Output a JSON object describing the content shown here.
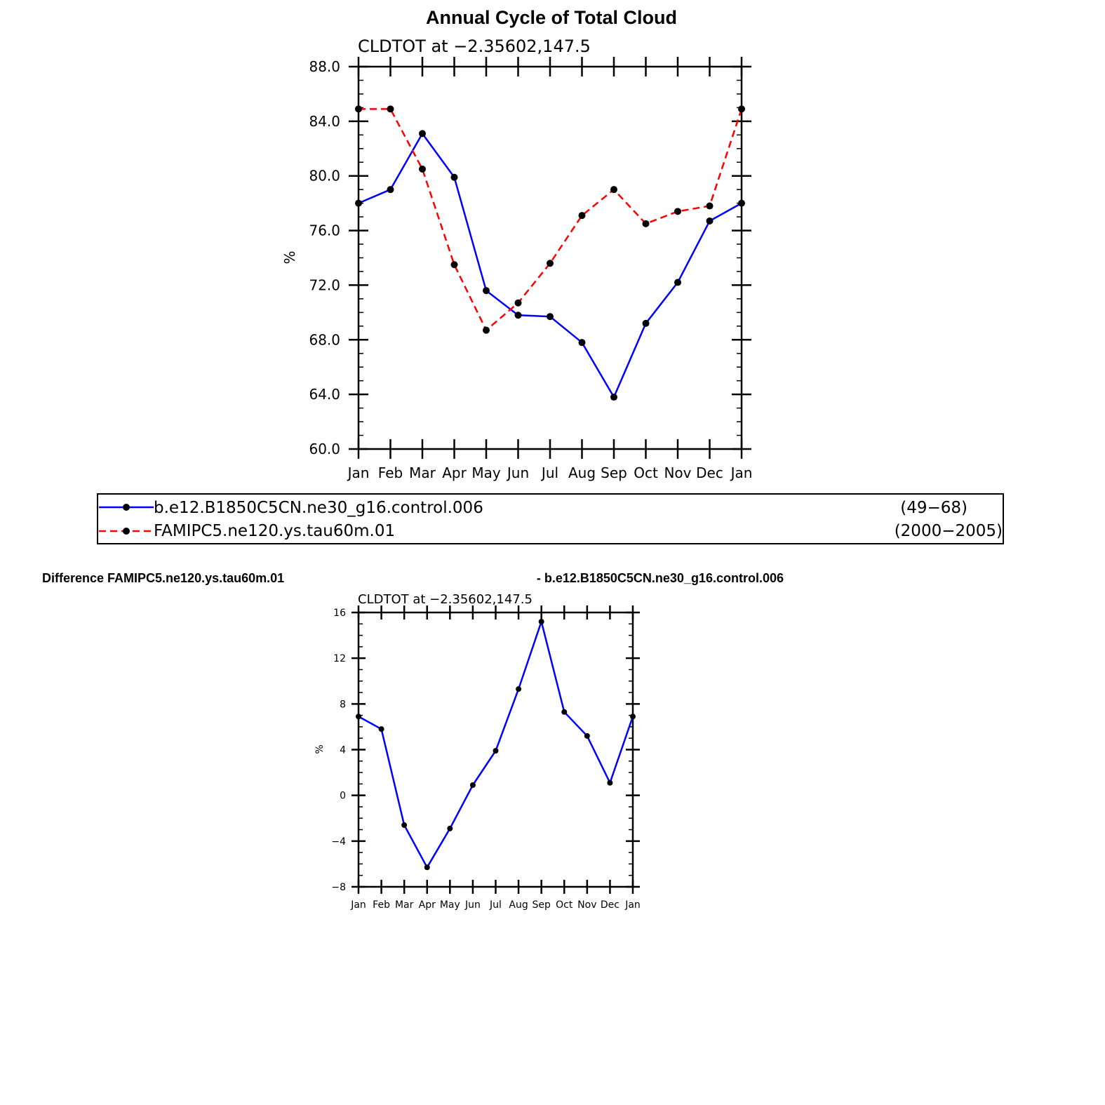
{
  "chart_data": [
    {
      "type": "line",
      "title": "Annual Cycle of Total Cloud",
      "subtitle": "CLDTOT at −2.35602,147.5",
      "xlabel": "",
      "ylabel": "%",
      "categories": [
        "Jan",
        "Feb",
        "Mar",
        "Apr",
        "May",
        "Jun",
        "Jul",
        "Aug",
        "Sep",
        "Oct",
        "Nov",
        "Dec",
        "Jan"
      ],
      "ylim": [
        60,
        88
      ],
      "ytick_labels": [
        "60.0",
        "64.0",
        "68.0",
        "72.0",
        "76.0",
        "80.0",
        "84.0",
        "88.0"
      ],
      "ytick_values": [
        60,
        64,
        68,
        72,
        76,
        80,
        84,
        88
      ],
      "grid": false,
      "series": [
        {
          "name": "b.e12.B1850C5CN.ne30_g16.control.006",
          "years": "(49−68)",
          "color": "#0000ff",
          "dash": "solid",
          "values": [
            78.0,
            79.0,
            83.1,
            79.9,
            71.6,
            69.8,
            69.7,
            67.8,
            63.8,
            69.2,
            72.2,
            76.7,
            78.0
          ]
        },
        {
          "name": "FAMIPC5.ne120.ys.tau60m.01",
          "years": "(2000−2005)",
          "color": "#ff0000",
          "dash": "dashed",
          "values": [
            84.9,
            84.9,
            80.5,
            73.5,
            68.7,
            70.7,
            73.6,
            77.1,
            79.0,
            76.5,
            77.4,
            77.8,
            84.9
          ]
        }
      ]
    },
    {
      "type": "line",
      "title_left": "Difference FAMIPC5.ne120.ys.tau60m.01",
      "title_right": "- b.e12.B1850C5CN.ne30_g16.control.006",
      "subtitle": "CLDTOT at −2.35602,147.5",
      "xlabel": "",
      "ylabel": "%",
      "categories": [
        "Jan",
        "Feb",
        "Mar",
        "Apr",
        "May",
        "Jun",
        "Jul",
        "Aug",
        "Sep",
        "Oct",
        "Nov",
        "Dec",
        "Jan"
      ],
      "ylim": [
        -8,
        16
      ],
      "ytick_labels": [
        "−8",
        "−4",
        "0",
        "4",
        "8",
        "12",
        "16"
      ],
      "ytick_values": [
        -8,
        -4,
        0,
        4,
        8,
        12,
        16
      ],
      "grid": false,
      "series": [
        {
          "name": "Difference",
          "color": "#0000ff",
          "dash": "solid",
          "values": [
            6.9,
            5.8,
            -2.6,
            -6.3,
            -2.9,
            0.9,
            3.9,
            9.3,
            15.2,
            7.3,
            5.2,
            1.1,
            6.9
          ]
        }
      ]
    }
  ]
}
